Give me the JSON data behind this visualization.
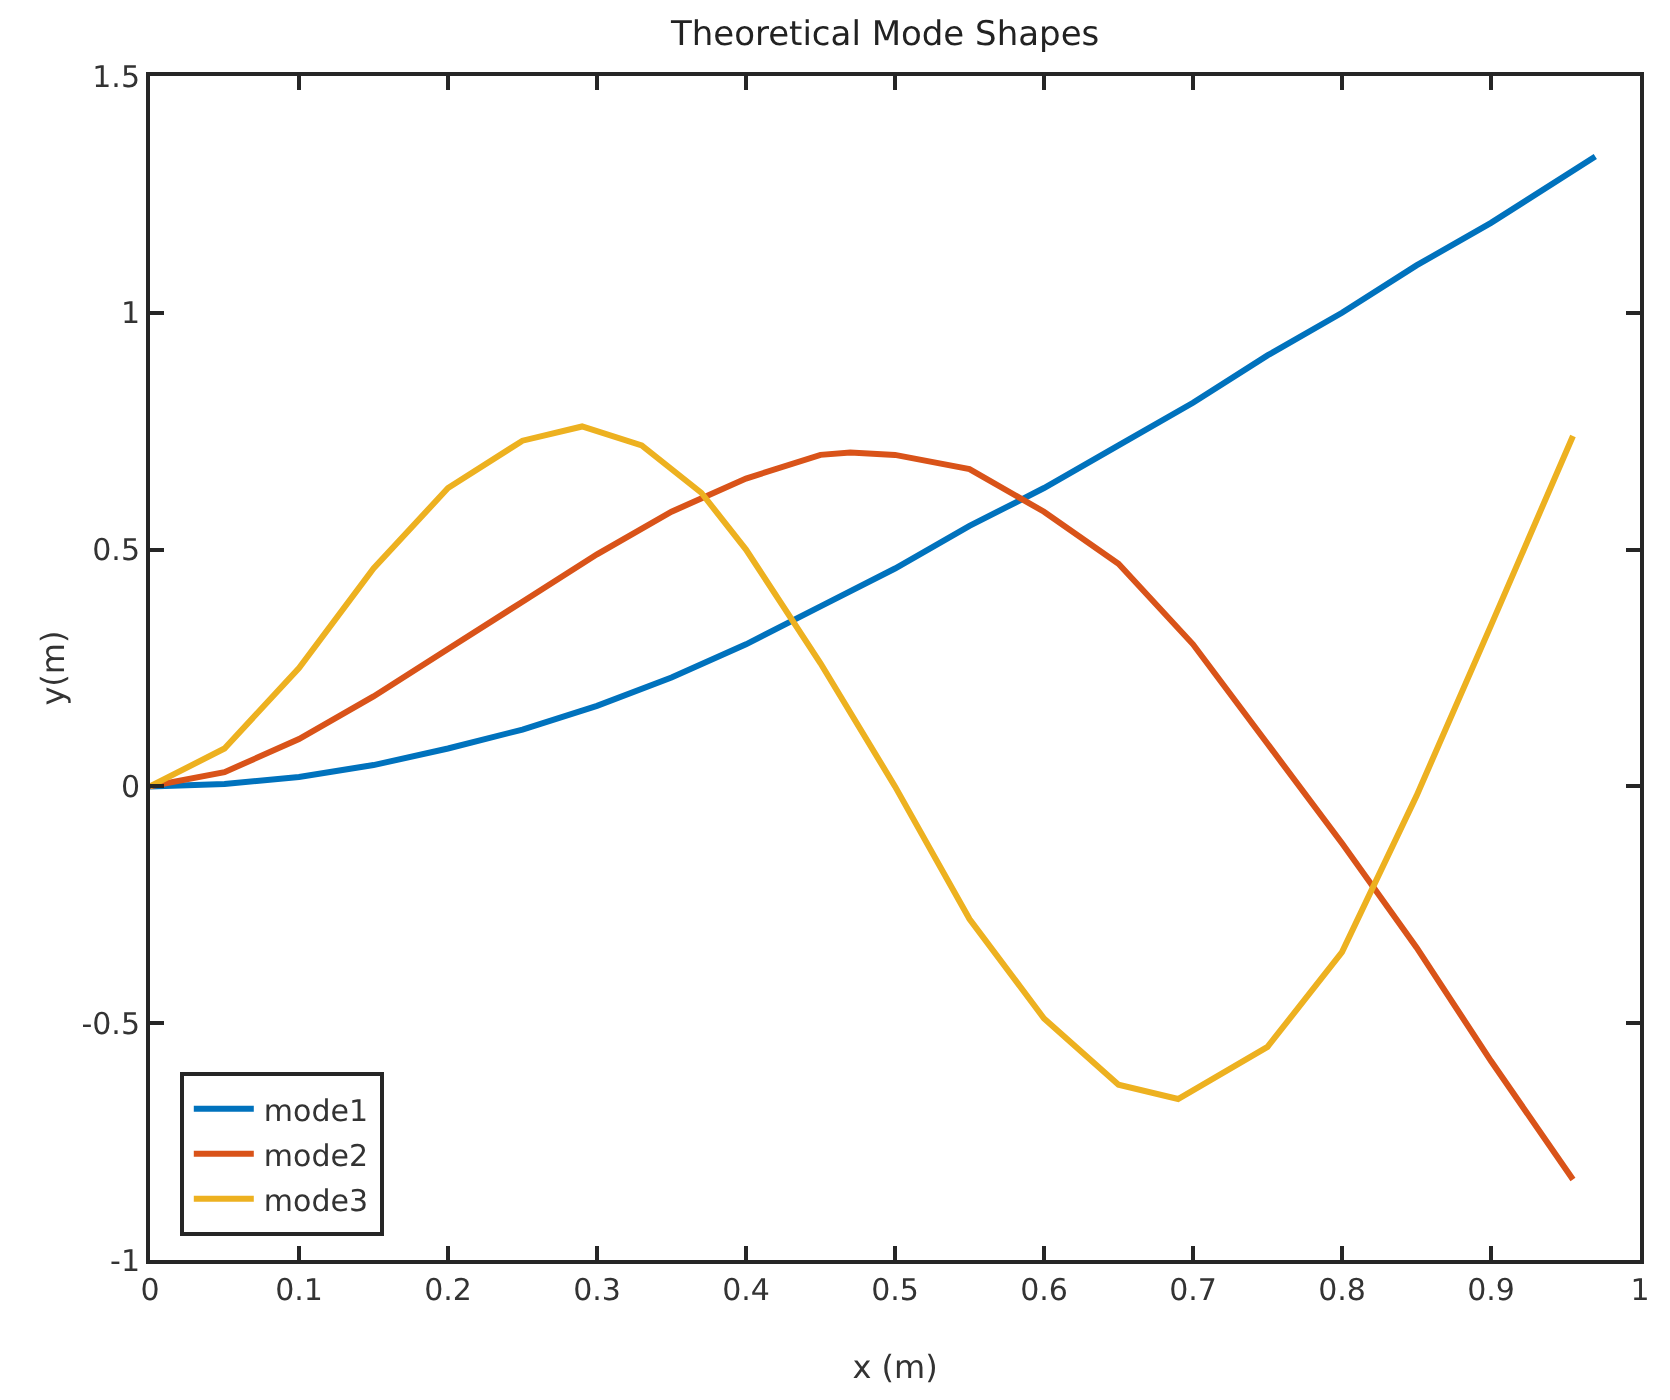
{
  "chart_data": {
    "type": "line",
    "title": "Theoretical Mode Shapes",
    "xlabel": "x (m)",
    "ylabel": "y(m)",
    "xlim": [
      0,
      1
    ],
    "xticks": [
      0,
      0.1,
      0.2,
      0.3,
      0.4,
      0.5,
      0.6,
      0.7,
      0.8,
      0.9,
      1
    ],
    "ylim": [
      -1,
      1.5
    ],
    "yticks": [
      -1,
      -0.5,
      0,
      0.5,
      1,
      1.5
    ],
    "grid": false,
    "legend": "bottom left",
    "marker": "none",
    "line_style": "solid",
    "series": [
      {
        "name": "mode1",
        "color": "#0072bd",
        "x": [
          0,
          0.05,
          0.1,
          0.15,
          0.2,
          0.25,
          0.3,
          0.35,
          0.4,
          0.45,
          0.5,
          0.55,
          0.6,
          0.65,
          0.7,
          0.75,
          0.8,
          0.85,
          0.9,
          0.97
        ],
        "values": [
          0,
          0.005,
          0.02,
          0.045,
          0.08,
          0.12,
          0.17,
          0.23,
          0.3,
          0.38,
          0.46,
          0.55,
          0.63,
          0.72,
          0.81,
          0.91,
          1.0,
          1.1,
          1.19,
          1.33
        ]
      },
      {
        "name": "mode2",
        "color": "#d95319",
        "x": [
          0,
          0.05,
          0.1,
          0.15,
          0.2,
          0.25,
          0.3,
          0.35,
          0.4,
          0.45,
          0.47,
          0.5,
          0.55,
          0.6,
          0.65,
          0.7,
          0.75,
          0.8,
          0.85,
          0.9,
          0.955
        ],
        "values": [
          0,
          0.03,
          0.1,
          0.19,
          0.29,
          0.39,
          0.49,
          0.58,
          0.65,
          0.7,
          0.705,
          0.7,
          0.67,
          0.58,
          0.47,
          0.3,
          0.09,
          -0.12,
          -0.34,
          -0.58,
          -0.83
        ]
      },
      {
        "name": "mode3",
        "color": "#edb120",
        "x": [
          0,
          0.05,
          0.1,
          0.15,
          0.2,
          0.25,
          0.29,
          0.33,
          0.37,
          0.4,
          0.45,
          0.5,
          0.55,
          0.6,
          0.65,
          0.69,
          0.75,
          0.8,
          0.85,
          0.9,
          0.955
        ],
        "values": [
          0,
          0.08,
          0.25,
          0.46,
          0.63,
          0.73,
          0.76,
          0.72,
          0.62,
          0.5,
          0.26,
          0,
          -0.28,
          -0.49,
          -0.63,
          -0.66,
          -0.55,
          -0.35,
          -0.02,
          0.34,
          0.74
        ]
      }
    ]
  }
}
